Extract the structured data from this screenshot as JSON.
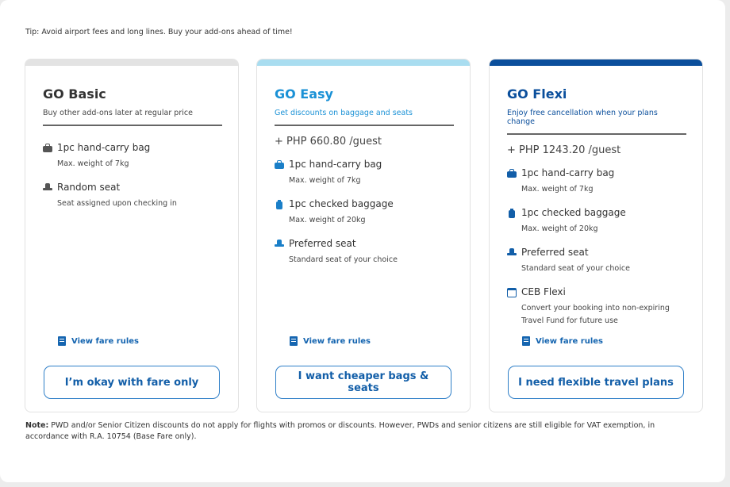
{
  "tip": "Tip: Avoid airport fees and long lines. Buy your add-ons ahead of time!",
  "colors": {
    "basic_bar": "#e3e3e3",
    "easy_bar": "#a9ddf0",
    "flexi_bar": "#0b4f9c",
    "easy_text": "#1a91d6",
    "flexi_text": "#0b4f9c"
  },
  "cards": [
    {
      "title": "GO Basic",
      "subtitle": "Buy other add-ons later at regular price",
      "price": "",
      "features": [
        {
          "icon": "hand-carry-bag-icon",
          "name": "1pc hand-carry bag",
          "desc": "Max. weight of 7kg"
        },
        {
          "icon": "seat-icon",
          "name": "Random seat",
          "desc": "Seat assigned upon checking in"
        }
      ],
      "fare_rules": "View fare rules",
      "button": "I’m okay with fare only"
    },
    {
      "title": "GO Easy",
      "subtitle": "Get discounts on baggage and seats",
      "price": "+ PHP 660.80 /guest",
      "features": [
        {
          "icon": "hand-carry-bag-icon",
          "name": "1pc hand-carry bag",
          "desc": "Max. weight of 7kg"
        },
        {
          "icon": "checked-baggage-icon",
          "name": "1pc checked baggage",
          "desc": "Max. weight of 20kg"
        },
        {
          "icon": "seat-icon",
          "name": "Preferred seat",
          "desc": "Standard seat of your choice"
        }
      ],
      "fare_rules": "View fare rules",
      "button": "I want cheaper bags & seats"
    },
    {
      "title": "GO Flexi",
      "subtitle": "Enjoy free cancellation when your plans change",
      "price": "+ PHP 1243.20 /guest",
      "features": [
        {
          "icon": "hand-carry-bag-icon",
          "name": "1pc hand-carry bag",
          "desc": "Max. weight of 7kg"
        },
        {
          "icon": "checked-baggage-icon",
          "name": "1pc checked baggage",
          "desc": "Max. weight of 20kg"
        },
        {
          "icon": "seat-icon",
          "name": "Preferred seat",
          "desc": "Standard seat of your choice"
        },
        {
          "icon": "calendar-icon",
          "name": "CEB Flexi",
          "desc": "Convert your booking into non-expiring",
          "desc2": "Travel Fund for future use"
        }
      ],
      "fare_rules": "View fare rules",
      "button": "I need flexible travel plans"
    }
  ],
  "note": {
    "label": "Note:",
    "text": " PWD and/or Senior Citizen discounts do not apply for flights with promos or discounts. However, PWDs and senior citizens are still eligible for VAT exemption, in accordance with R.A. 10754 (Base Fare only)."
  }
}
